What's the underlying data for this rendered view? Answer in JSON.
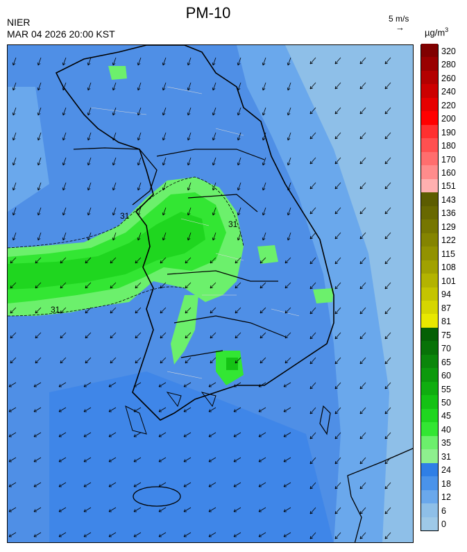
{
  "header": {
    "title": "PM-10",
    "agency": "NIER",
    "timestamp": "MAR 04 2026 20:00 KST",
    "reference_vector_label": "5 m/s",
    "reference_vector_arrow": "→",
    "unit_base": "µg/m",
    "unit_exp": "3"
  },
  "map": {
    "contour_labels": [
      "31",
      "31",
      "31"
    ],
    "background_color": "#4f8fe6",
    "land_outline_color": "#000000"
  },
  "colorbar": {
    "levels": [
      {
        "label": "0",
        "color": "#9ec9e8"
      },
      {
        "label": "6",
        "color": "#8ebfe8"
      },
      {
        "label": "12",
        "color": "#6aa8ec"
      },
      {
        "label": "18",
        "color": "#4a93ea"
      },
      {
        "label": "24",
        "color": "#2f7fe6"
      },
      {
        "label": "31",
        "color": "#8ef08e"
      },
      {
        "label": "35",
        "color": "#6cf06c"
      },
      {
        "label": "40",
        "color": "#33e633"
      },
      {
        "label": "45",
        "color": "#1fd61f"
      },
      {
        "label": "50",
        "color": "#14c214"
      },
      {
        "label": "55",
        "color": "#10ad10"
      },
      {
        "label": "60",
        "color": "#0c990c"
      },
      {
        "label": "65",
        "color": "#0a860a"
      },
      {
        "label": "70",
        "color": "#077207"
      },
      {
        "label": "75",
        "color": "#056005"
      },
      {
        "label": "81",
        "color": "#e8e800"
      },
      {
        "label": "87",
        "color": "#d6d600"
      },
      {
        "label": "94",
        "color": "#c4c400"
      },
      {
        "label": "101",
        "color": "#b3b300"
      },
      {
        "label": "108",
        "color": "#a1a100"
      },
      {
        "label": "115",
        "color": "#929200"
      },
      {
        "label": "122",
        "color": "#848400"
      },
      {
        "label": "129",
        "color": "#767600"
      },
      {
        "label": "136",
        "color": "#686800"
      },
      {
        "label": "143",
        "color": "#5c5c00"
      },
      {
        "label": "151",
        "color": "#ffb0b0"
      },
      {
        "label": "160",
        "color": "#ff8c8c"
      },
      {
        "label": "170",
        "color": "#ff6e6e"
      },
      {
        "label": "180",
        "color": "#ff5050"
      },
      {
        "label": "190",
        "color": "#ff3030"
      },
      {
        "label": "200",
        "color": "#ff0000"
      },
      {
        "label": "220",
        "color": "#e60000"
      },
      {
        "label": "240",
        "color": "#cc0000"
      },
      {
        "label": "260",
        "color": "#b30000"
      },
      {
        "label": "280",
        "color": "#990000"
      },
      {
        "label": "320",
        "color": "#800000"
      }
    ]
  }
}
